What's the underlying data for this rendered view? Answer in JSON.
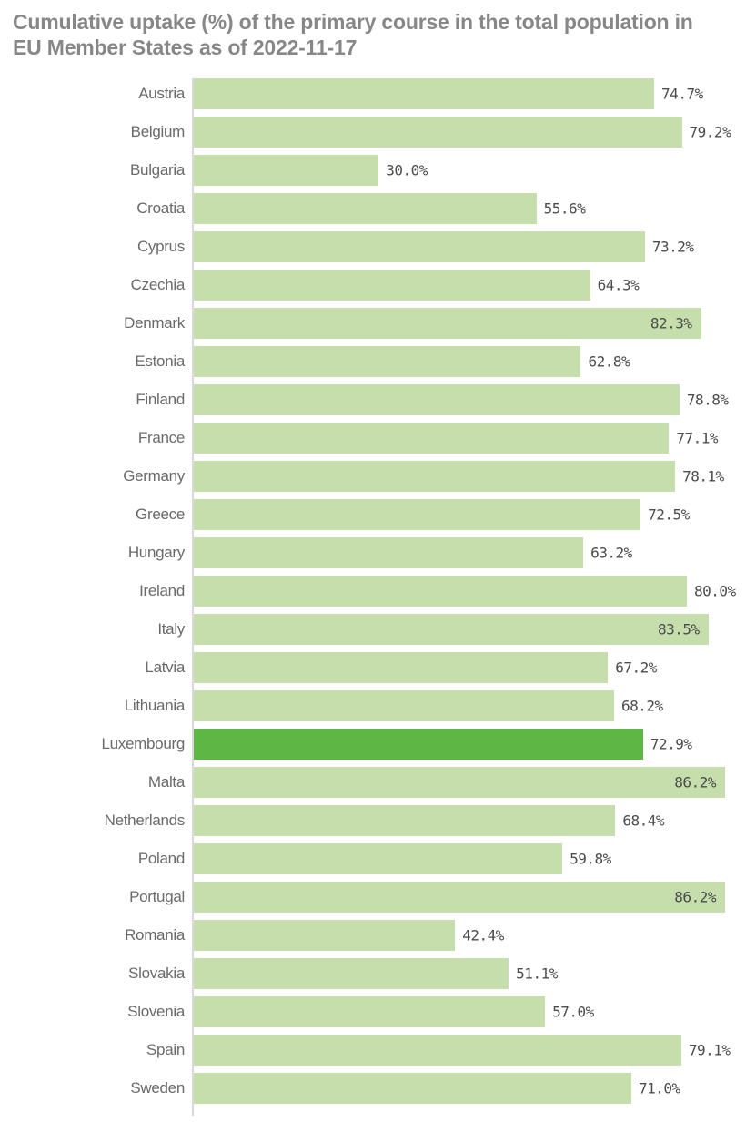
{
  "chart_data": {
    "type": "bar",
    "orientation": "horizontal",
    "title": "Cumulative uptake (%) of the primary course in the total population in EU Member States as of 2022-11-17",
    "unit": "%",
    "categories": [
      "Austria",
      "Belgium",
      "Bulgaria",
      "Croatia",
      "Cyprus",
      "Czechia",
      "Denmark",
      "Estonia",
      "Finland",
      "France",
      "Germany",
      "Greece",
      "Hungary",
      "Ireland",
      "Italy",
      "Latvia",
      "Lithuania",
      "Luxembourg",
      "Malta",
      "Netherlands",
      "Poland",
      "Portugal",
      "Romania",
      "Slovakia",
      "Slovenia",
      "Spain",
      "Sweden"
    ],
    "values": [
      74.7,
      79.2,
      30.0,
      55.6,
      73.2,
      64.3,
      82.3,
      62.8,
      78.8,
      77.1,
      78.1,
      72.5,
      63.2,
      80.0,
      83.5,
      67.2,
      68.2,
      72.9,
      86.2,
      68.4,
      59.8,
      86.2,
      42.4,
      51.1,
      57.0,
      79.1,
      71.0
    ],
    "value_label_format": "{value}%",
    "highlight_category": "Luxembourg",
    "axis": {
      "x_min": 0,
      "x_max": 89.6,
      "gridlines": false,
      "axis_line": true
    },
    "legend": "none",
    "colors": {
      "bar_default": "#c5deab",
      "bar_highlight": "#5eb744",
      "value_label": "#4c4c4c",
      "category_label": "#6a6a6a",
      "title": "#878787",
      "axis_line": "#d9d9d9",
      "background": "#ffffff"
    }
  }
}
